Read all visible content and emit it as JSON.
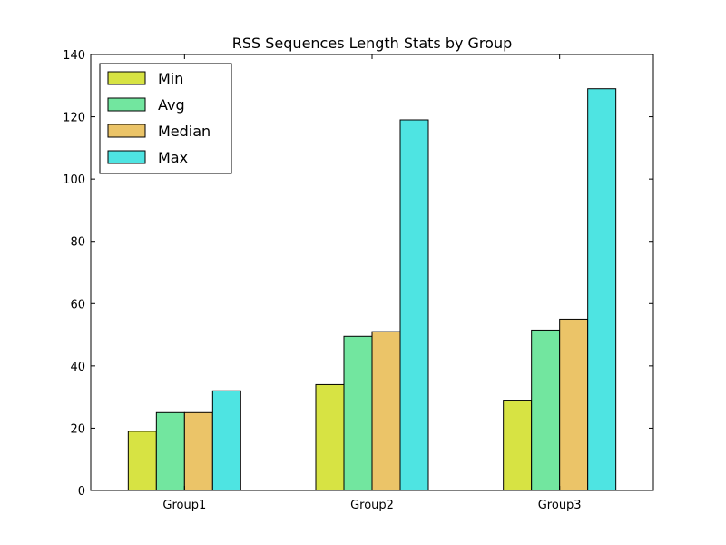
{
  "chart_data": {
    "type": "bar",
    "title": "RSS Sequences Length Stats by Group",
    "xlabel": "",
    "ylabel": "",
    "categories": [
      "Group1",
      "Group2",
      "Group3"
    ],
    "ylim": [
      0,
      140
    ],
    "yticks": [
      0,
      20,
      40,
      60,
      80,
      100,
      120,
      140
    ],
    "grid": false,
    "legend_position": "top-left",
    "series": [
      {
        "name": "Min",
        "color": "#d7e343",
        "values": [
          19,
          34,
          29
        ]
      },
      {
        "name": "Avg",
        "color": "#72e69f",
        "values": [
          25,
          49.5,
          51.5
        ]
      },
      {
        "name": "Median",
        "color": "#ebc468",
        "values": [
          25,
          51,
          55
        ]
      },
      {
        "name": "Max",
        "color": "#4ee4e2",
        "values": [
          32,
          119,
          129
        ]
      }
    ]
  }
}
